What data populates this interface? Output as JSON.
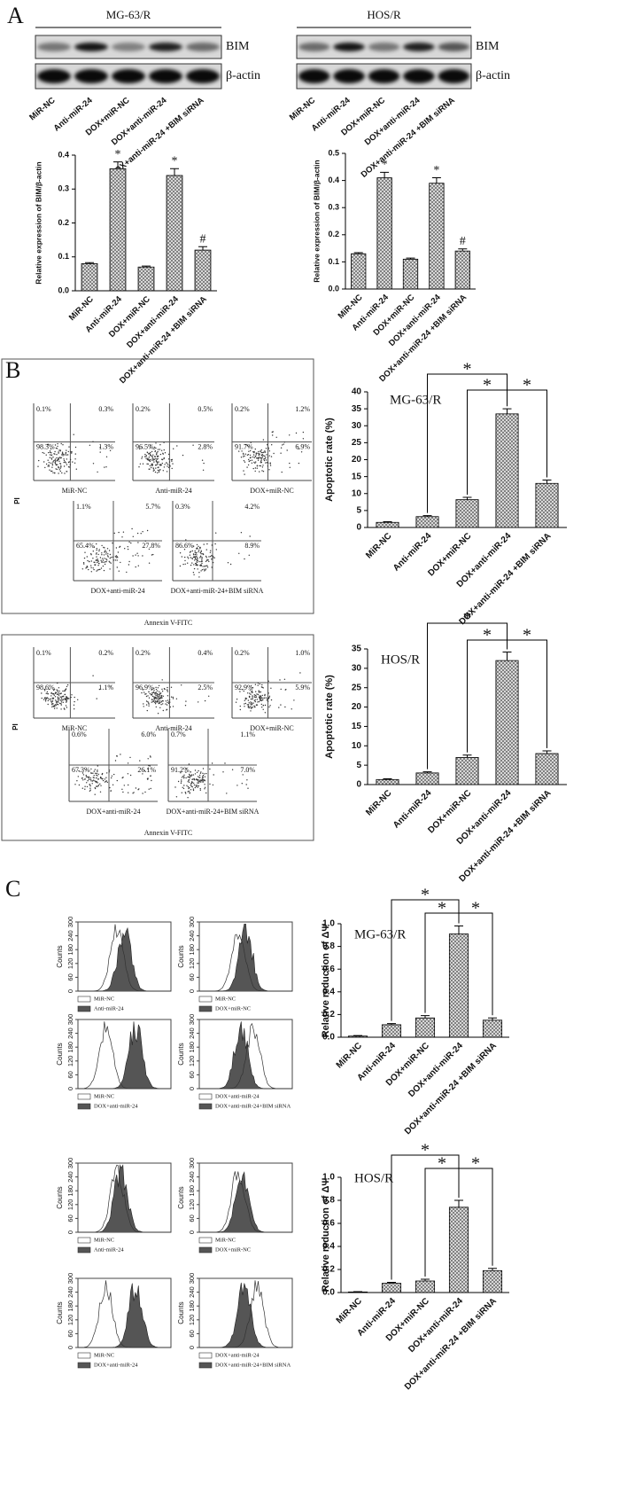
{
  "panel_labels": [
    "A",
    "B",
    "C"
  ],
  "blots": [
    {
      "title": "MG-63/R",
      "rows": [
        "BIM",
        "β-actin"
      ],
      "lanes": [
        "MiR-NC",
        "Anti-miR-24",
        "DOX+miR-NC",
        "DOX+anti-miR-24",
        "DOX+anti-miR-24 +BIM siRNA"
      ]
    },
    {
      "title": "HOS/R",
      "rows": [
        "BIM",
        "β-actin"
      ],
      "lanes": [
        "MiR-NC",
        "Anti-miR-24",
        "DOX+miR-NC",
        "DOX+anti-miR-24",
        "DOX+anti-miR-24 +BIM siRNA"
      ]
    }
  ],
  "flow": [
    {
      "y_label": "PI",
      "x_label": "Annexin V-FITC",
      "plots": [
        {
          "label": "MiR-NC",
          "quadrants": [
            "0.1%",
            "0.3%",
            "98.3%",
            "1.3%"
          ]
        },
        {
          "label": "Anti-miR-24",
          "quadrants": [
            "0.2%",
            "0.5%",
            "96.5%",
            "2.8%"
          ]
        },
        {
          "label": "DOX+miR-NC",
          "quadrants": [
            "0.2%",
            "1.2%",
            "91.7%",
            "6.9%"
          ]
        },
        {
          "label": "DOX+anti-miR-24",
          "quadrants": [
            "1.1%",
            "5.7%",
            "65.4%",
            "27.8%"
          ]
        },
        {
          "label": "DOX+anti-miR-24+BIM siRNA",
          "quadrants": [
            "0.3%",
            "4.2%",
            "86.6%",
            "8.9%"
          ]
        }
      ]
    },
    {
      "y_label": "PI",
      "x_label": "Annexin V-FITC",
      "plots": [
        {
          "label": "MiR-NC",
          "quadrants": [
            "0.1%",
            "0.2%",
            "98.6%",
            "1.1%"
          ]
        },
        {
          "label": "Anti-miR-24",
          "quadrants": [
            "0.2%",
            "0.4%",
            "96.9%",
            "2.5%"
          ]
        },
        {
          "label": "DOX+miR-NC",
          "quadrants": [
            "0.2%",
            "1.0%",
            "92.9%",
            "5.9%"
          ]
        },
        {
          "label": "DOX+anti-miR-24",
          "quadrants": [
            "0.6%",
            "6.0%",
            "67.3%",
            "26.1%"
          ]
        },
        {
          "label": "DOX+anti-miR-24+BIM siRNA",
          "quadrants": [
            "0.7%",
            "1.1%",
            "91.2%",
            "7.0%"
          ]
        }
      ]
    }
  ],
  "histograms": {
    "y_label": "Counts",
    "yticks": [
      0,
      60,
      120,
      180,
      240,
      300
    ],
    "plots": [
      {
        "legend": [
          "MiR-NC",
          "Anti-miR-24"
        ]
      },
      {
        "legend": [
          "MiR-NC",
          "DOX+miR-NC"
        ]
      },
      {
        "legend": [
          "MiR-NC",
          "DOX+anti-miR-24"
        ]
      },
      {
        "legend": [
          "DOX+anti-miR-24",
          "DOX+anti-miR-24+BIM siRNA"
        ]
      },
      {
        "legend": [
          "MiR-NC",
          "Anti-miR-24"
        ]
      },
      {
        "legend": [
          "MiR-NC",
          "DOX+miR-NC"
        ]
      },
      {
        "legend": [
          "MiR-NC",
          "DOX+anti-miR-24"
        ]
      },
      {
        "legend": [
          "DOX+anti-miR-24",
          "DOX+anti-miR-24+BIM siRNA"
        ]
      }
    ]
  },
  "chart_data": [
    {
      "type": "bar",
      "ylabel": "Relative expression of BIM/β-actin",
      "categories": [
        "MiR-NC",
        "Anti-miR-24",
        "DOX+miR-NC",
        "DOX+anti-miR-24",
        "DOX+anti-miR-24 +BIM siRNA"
      ],
      "values": [
        0.08,
        0.36,
        0.07,
        0.34,
        0.12
      ],
      "errors": [
        0.003,
        0.02,
        0.003,
        0.02,
        0.01
      ],
      "bar_labels": [
        null,
        "*",
        null,
        "*",
        "#"
      ],
      "color": "#7a7a7a",
      "ylim": [
        0,
        0.4
      ],
      "yticks": [
        {
          "value": 0,
          "label": "0.0"
        },
        0.1,
        0.2,
        0.3,
        0.4
      ]
    },
    {
      "type": "bar",
      "ylabel": "Relative expression of BIM/β-actin",
      "categories": [
        "MiR-NC",
        "Anti-miR-24",
        "DOX+miR-NC",
        "DOX+anti-miR-24",
        "DOX+anti-miR-24 +BIM siRNA"
      ],
      "values": [
        0.13,
        0.41,
        0.11,
        0.39,
        0.14
      ],
      "errors": [
        0.004,
        0.02,
        0.004,
        0.02,
        0.008
      ],
      "bar_labels": [
        null,
        "*",
        null,
        "*",
        "#"
      ],
      "color": "#7a7a7a",
      "ylim": [
        0,
        0.5
      ],
      "yticks": [
        {
          "value": 0,
          "label": "0.0"
        },
        0.1,
        0.2,
        0.3,
        0.4,
        0.5
      ]
    },
    {
      "type": "bar",
      "title": "MG-63/R",
      "ylabel": "Apoptotic rate (%)",
      "categories": [
        "MiR-NC",
        "Anti-miR-24",
        "DOX+miR-NC",
        "DOX+anti-miR-24",
        "DOX+anti-miR-24 +BIM siRNA"
      ],
      "values": [
        1.5,
        3.2,
        8.2,
        33.5,
        13
      ],
      "errors": [
        0.2,
        0.3,
        0.7,
        1.5,
        1.0
      ],
      "significance": [
        "*",
        "*",
        "*"
      ],
      "color": "#7a7a7a",
      "ylim": [
        0,
        40
      ],
      "yticks": [
        0,
        5,
        10,
        15,
        20,
        25,
        30,
        35,
        40
      ]
    },
    {
      "type": "bar",
      "title": "HOS/R",
      "ylabel": "Apoptotic rate (%)",
      "categories": [
        "MiR-NC",
        "Anti-miR-24",
        "DOX+miR-NC",
        "DOX+anti-miR-24",
        "DOX+anti-miR-24 +BIM siRNA"
      ],
      "values": [
        1.3,
        3.0,
        7.0,
        32,
        8.0
      ],
      "errors": [
        0.2,
        0.3,
        0.6,
        2.2,
        0.7
      ],
      "significance": [
        "*",
        "*",
        "*"
      ],
      "color": "#7a7a7a",
      "ylim": [
        0,
        35
      ],
      "yticks": [
        0,
        5,
        10,
        15,
        20,
        25,
        30,
        35
      ]
    },
    {
      "type": "bar",
      "title": "MG-63/R",
      "ylabel": "Relative reduction of ΔΨ",
      "categories": [
        "MiR-NC",
        "Anti-miR-24",
        "DOX+miR-NC",
        "DOX+anti-miR-24",
        "DOX+anti-miR-24 +BIM siRNA"
      ],
      "values": [
        0.01,
        0.11,
        0.17,
        0.91,
        0.15
      ],
      "errors": [
        0.005,
        0.01,
        0.02,
        0.07,
        0.02
      ],
      "significance": [
        "*",
        "*",
        "*"
      ],
      "color": "#7a7a7a",
      "ylim": [
        0,
        1
      ],
      "yticks": [
        {
          "value": 0,
          "label": "0.0"
        },
        0.2,
        0.4,
        0.6,
        0.8,
        {
          "value": 1,
          "label": "1.0"
        }
      ]
    },
    {
      "type": "bar",
      "title": "HOS/R",
      "ylabel": "Relative reduction of ΔΨ",
      "categories": [
        "MiR-NC",
        "Anti-miR-24",
        "DOX+miR-NC",
        "DOX+anti-miR-24",
        "DOX+anti-miR-24 +BIM siRNA"
      ],
      "values": [
        0.005,
        0.08,
        0.1,
        0.74,
        0.19
      ],
      "errors": [
        0.003,
        0.008,
        0.015,
        0.06,
        0.02
      ],
      "significance": [
        "*",
        "*",
        "*"
      ],
      "color": "#7a7a7a",
      "ylim": [
        0,
        1
      ],
      "yticks": [
        {
          "value": 0,
          "label": "0.0"
        },
        0.2,
        0.4,
        0.6,
        0.8,
        {
          "value": 1,
          "label": "1.0"
        }
      ]
    }
  ]
}
